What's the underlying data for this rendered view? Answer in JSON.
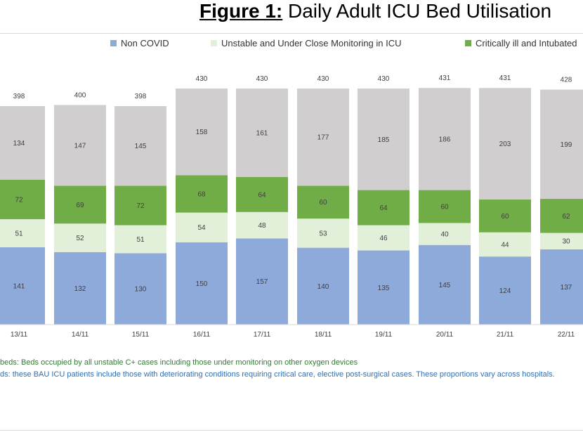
{
  "title": {
    "prefix": "Figure 1:",
    "text": " Daily Adult ICU Bed Utilisation"
  },
  "colors": {
    "non_covid": "#8eaadb",
    "unstable": "#e2efd9",
    "critical": "#70ad47",
    "other": "#d0cece",
    "axis": "#d9d9d9",
    "label": "#404040"
  },
  "chart_data": {
    "type": "bar",
    "stacked": true,
    "categories": [
      "13/11",
      "14/11",
      "15/11",
      "16/11",
      "17/11",
      "18/11",
      "19/11",
      "20/11",
      "21/11",
      "22/11"
    ],
    "series": [
      {
        "name": "Non COVID",
        "values": [
          141,
          132,
          130,
          150,
          157,
          140,
          135,
          145,
          124,
          137
        ]
      },
      {
        "name": "Unstable and Under Close Monitoring in ICU",
        "values": [
          51,
          52,
          51,
          54,
          48,
          53,
          46,
          40,
          44,
          30
        ]
      },
      {
        "name": "Critically ill and Intubated",
        "values": [
          72,
          69,
          72,
          68,
          64,
          60,
          64,
          60,
          60,
          62
        ]
      },
      {
        "name": "",
        "values": [
          134,
          147,
          145,
          158,
          161,
          177,
          185,
          186,
          203,
          199
        ]
      }
    ],
    "totals": [
      398,
      400,
      398,
      430,
      430,
      430,
      430,
      431,
      431,
      428
    ],
    "legend_position": "top",
    "grid": false,
    "ylim": [
      0,
      430
    ]
  },
  "notes": [
    "beds: Beds occupied by all unstable C+ cases including those under monitoring on other oxygen devices",
    "ds: these BAU ICU patients include those with deteriorating conditions requiring critical care, elective post-surgical cases. These proportions vary across hospitals."
  ]
}
